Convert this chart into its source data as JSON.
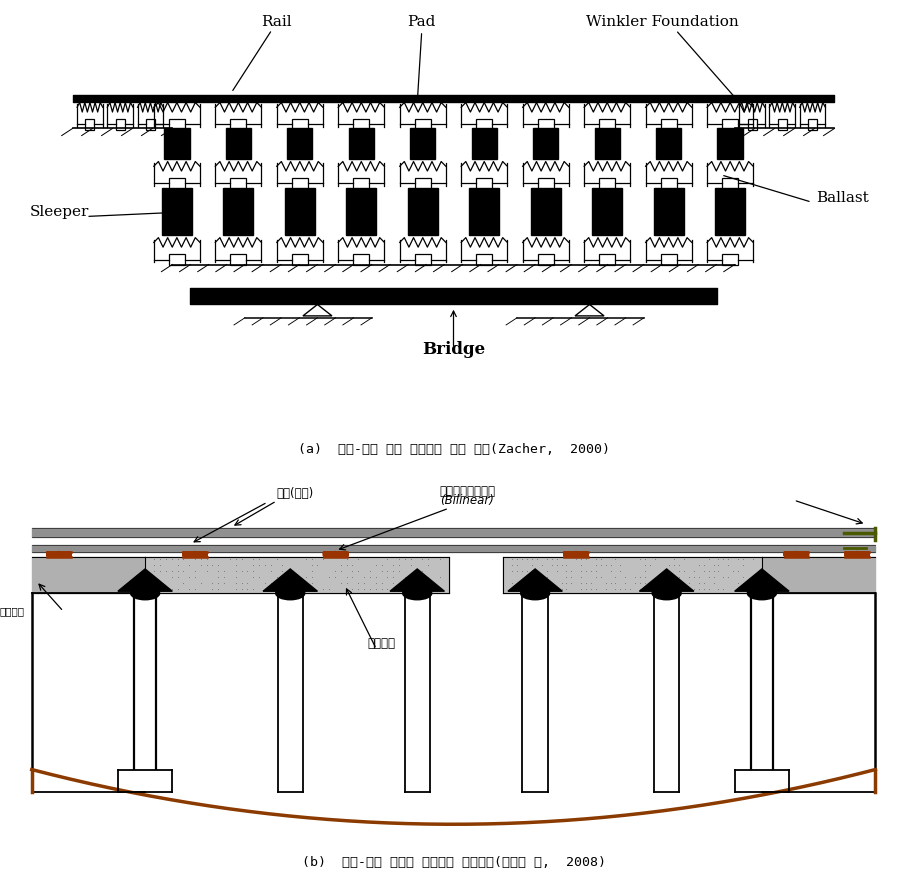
{
  "fig_width": 9.07,
  "fig_height": 8.81,
  "bg_color": "#ffffff",
  "caption_a": "(a)  궤도-교량 동적 상호작용 해석 모델(Zacher,  2000)",
  "caption_b": "(b)  궤도-교량 종방향 상호작용 해석모델(양신추 외,  2008)",
  "label_rail": "Rail",
  "label_pad": "Pad",
  "label_winkler": "Winkler Foundation",
  "label_sleeper": "Sleeper",
  "label_ballast": "Ballast",
  "label_bridge": "Bridge",
  "label_rail_kr": "궤도(레일)",
  "label_ballast_spring_kr": "도상종저항스프링",
  "label_bilinear": "(Bilinear)",
  "label_earth_section": "토공구간",
  "label_bridge_deck": "교량상판"
}
